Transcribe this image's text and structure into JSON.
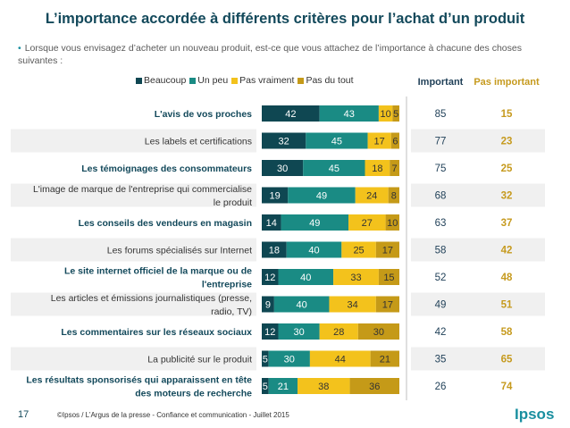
{
  "title": "L’importance accordée à différents critères pour l’achat d’un produit",
  "subtitle": "Lorsque vous envisagez d’acheter un nouveau produit, est-ce que vous attachez de l’importance à chacune des choses suivantes :",
  "columns": {
    "important": "Important",
    "pas_important": "Pas important"
  },
  "footer": {
    "page_number": "17",
    "source": "©Ipsos / L’Argus de la presse - Confiance et communication - Juillet 2015",
    "logo": "Ipsos"
  },
  "colors": {
    "beaucoup": "#0f4752",
    "un_peu": "#1a8b84",
    "pas_vraiment": "#f3c21c",
    "pas_du_tout": "#c59a18",
    "row_bg": "#f0f0f0",
    "important_text": "#1f3f57",
    "pas_important_text": "#c69a1e",
    "label_dark": "#13495b"
  },
  "chart_data": {
    "type": "bar",
    "orientation": "horizontal",
    "stacked": true,
    "legend_position": "top",
    "categories": [
      "L'avis de vos proches",
      "Les labels et certifications",
      "Les témoignages des consommateurs",
      "L'image de marque de l'entreprise qui commercialise le produit",
      "Les conseils des vendeurs en magasin",
      "Les forums spécialisés sur Internet",
      "Le site internet officiel de la marque ou de l'entreprise",
      "Les articles et émissions journalistiques (presse, radio, TV)",
      "Les commentaires sur les réseaux sociaux",
      "La publicité sur le produit",
      "Les résultats sponsorisés qui apparaissent en tête des moteurs de recherche"
    ],
    "label_lines": [
      [
        "L'avis de vos proches"
      ],
      [
        "Les labels et certifications"
      ],
      [
        "Les témoignages des consommateurs"
      ],
      [
        "L'image de marque de l'entreprise qui commercialise",
        "le produit"
      ],
      [
        "Les conseils des vendeurs en magasin"
      ],
      [
        "Les forums spécialisés sur Internet"
      ],
      [
        "Le site internet officiel de la marque ou de",
        "l'entreprise"
      ],
      [
        "Les articles et émissions journalistiques (presse,",
        "radio, TV)"
      ],
      [
        "Les commentaires sur les réseaux sociaux"
      ],
      [
        "La publicité sur le produit"
      ],
      [
        "Les résultats sponsorisés qui apparaissent en tête",
        "des moteurs de recherche"
      ]
    ],
    "label_bold": [
      true,
      false,
      true,
      false,
      true,
      false,
      true,
      false,
      true,
      false,
      true
    ],
    "series": [
      {
        "name": "Beaucoup",
        "key": "beaucoup",
        "values": [
          42,
          32,
          30,
          19,
          14,
          18,
          12,
          9,
          12,
          5,
          5
        ]
      },
      {
        "name": "Un peu",
        "key": "un_peu",
        "values": [
          43,
          45,
          45,
          49,
          49,
          40,
          40,
          40,
          30,
          30,
          21
        ]
      },
      {
        "name": "Pas vraiment",
        "key": "pas_vraiment",
        "values": [
          10,
          17,
          18,
          24,
          27,
          25,
          33,
          34,
          28,
          44,
          38
        ]
      },
      {
        "name": "Pas du tout",
        "key": "pas_du_tout",
        "values": [
          5,
          6,
          7,
          8,
          10,
          17,
          15,
          17,
          30,
          21,
          36
        ]
      }
    ],
    "important": [
      85,
      77,
      75,
      68,
      63,
      58,
      52,
      49,
      42,
      35,
      26
    ],
    "pas_important": [
      15,
      23,
      25,
      32,
      37,
      42,
      48,
      51,
      58,
      65,
      74
    ],
    "xlim": [
      0,
      100
    ]
  }
}
